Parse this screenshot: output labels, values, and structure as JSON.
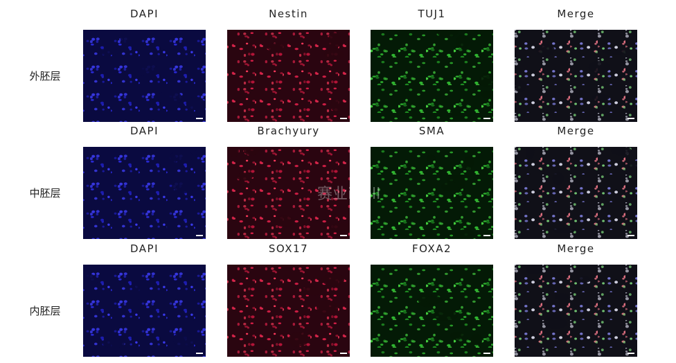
{
  "rows": [
    {
      "label": "外胚层",
      "panels": [
        {
          "title": "DAPI"
        },
        {
          "title": "Nestin"
        },
        {
          "title": "TUJ1"
        },
        {
          "title": "Merge"
        }
      ]
    },
    {
      "label": "中胚层",
      "panels": [
        {
          "title": "DAPI"
        },
        {
          "title": "Brachyury"
        },
        {
          "title": "SMA"
        },
        {
          "title": "Merge"
        }
      ]
    },
    {
      "label": "内胚层",
      "panels": [
        {
          "title": "DAPI"
        },
        {
          "title": "SOX17"
        },
        {
          "title": "FOXA2"
        },
        {
          "title": "Merge"
        }
      ]
    }
  ],
  "watermark": "赛业iCell"
}
